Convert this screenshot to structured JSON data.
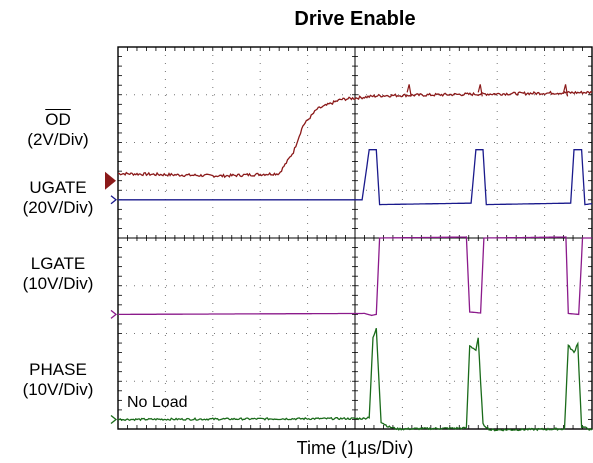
{
  "chart_data": {
    "type": "line",
    "title": "Drive Enable",
    "xlabel": "Time (1μs/Div)",
    "ylabel": "",
    "annotation": "No Load",
    "x_divisions": 10,
    "y_divisions": 8,
    "grid": true,
    "channels": [
      {
        "name_lines": [
          "OD",
          "(2V/Div)"
        ],
        "overline_first": true,
        "color": "#8b1a1a",
        "marker": "filled-arrow",
        "ref_div": 5.2,
        "points": [
          [
            0,
            5.35
          ],
          [
            2.2,
            5.3
          ],
          [
            3.4,
            5.35
          ],
          [
            3.7,
            5.8
          ],
          [
            3.9,
            6.35
          ],
          [
            4.2,
            6.7
          ],
          [
            4.7,
            6.9
          ],
          [
            5.5,
            6.98
          ],
          [
            10,
            7.05
          ]
        ],
        "glitch_at": [
          6.1,
          7.6,
          9.4
        ],
        "noise": 0.03
      },
      {
        "name_lines": [
          "UGATE",
          "(20V/Div)"
        ],
        "color": "#1a1a8c",
        "marker": "open-chevron",
        "ref_div": 4.8,
        "points": [
          [
            0,
            4.8
          ],
          [
            5.15,
            4.8
          ],
          [
            5.3,
            5.85
          ],
          [
            5.45,
            5.85
          ],
          [
            5.52,
            4.7
          ],
          [
            7.45,
            4.73
          ],
          [
            7.55,
            5.85
          ],
          [
            7.7,
            5.85
          ],
          [
            7.77,
            4.7
          ],
          [
            9.55,
            4.73
          ],
          [
            9.62,
            5.85
          ],
          [
            9.78,
            5.85
          ],
          [
            9.85,
            4.7
          ],
          [
            10,
            4.72
          ]
        ],
        "noise": 0.0
      },
      {
        "name_lines": [
          "LGATE",
          "(10V/Div)"
        ],
        "color": "#8b1a8b",
        "marker": "open-chevron",
        "ref_div": 2.4,
        "points": [
          [
            0,
            2.4
          ],
          [
            5.2,
            2.42
          ],
          [
            5.35,
            2.38
          ],
          [
            5.45,
            2.4
          ],
          [
            5.52,
            4.0
          ],
          [
            7.35,
            4.02
          ],
          [
            7.42,
            2.45
          ],
          [
            7.65,
            2.43
          ],
          [
            7.72,
            4.0
          ],
          [
            9.45,
            4.02
          ],
          [
            9.5,
            2.42
          ],
          [
            9.72,
            2.4
          ],
          [
            9.8,
            4.0
          ],
          [
            10,
            4.0
          ]
        ],
        "noise": 0.0
      },
      {
        "name_lines": [
          "PHASE",
          "(10V/Div)"
        ],
        "color": "#1a6b1a",
        "marker": "open-chevron",
        "ref_div": 0.2,
        "points": [
          [
            0,
            0.2
          ],
          [
            5.2,
            0.22
          ],
          [
            5.3,
            0.25
          ],
          [
            5.38,
            1.9
          ],
          [
            5.45,
            2.1
          ],
          [
            5.55,
            0.15
          ],
          [
            5.7,
            0.05
          ],
          [
            5.9,
            0.0
          ],
          [
            7.35,
            0.02
          ],
          [
            7.42,
            1.75
          ],
          [
            7.55,
            1.65
          ],
          [
            7.6,
            1.9
          ],
          [
            7.7,
            0.1
          ],
          [
            7.85,
            -0.02
          ],
          [
            9.42,
            0.0
          ],
          [
            9.5,
            1.75
          ],
          [
            9.62,
            1.6
          ],
          [
            9.7,
            1.8
          ],
          [
            9.78,
            0.05
          ],
          [
            10,
            -0.02
          ]
        ],
        "noise": 0.02
      }
    ]
  }
}
